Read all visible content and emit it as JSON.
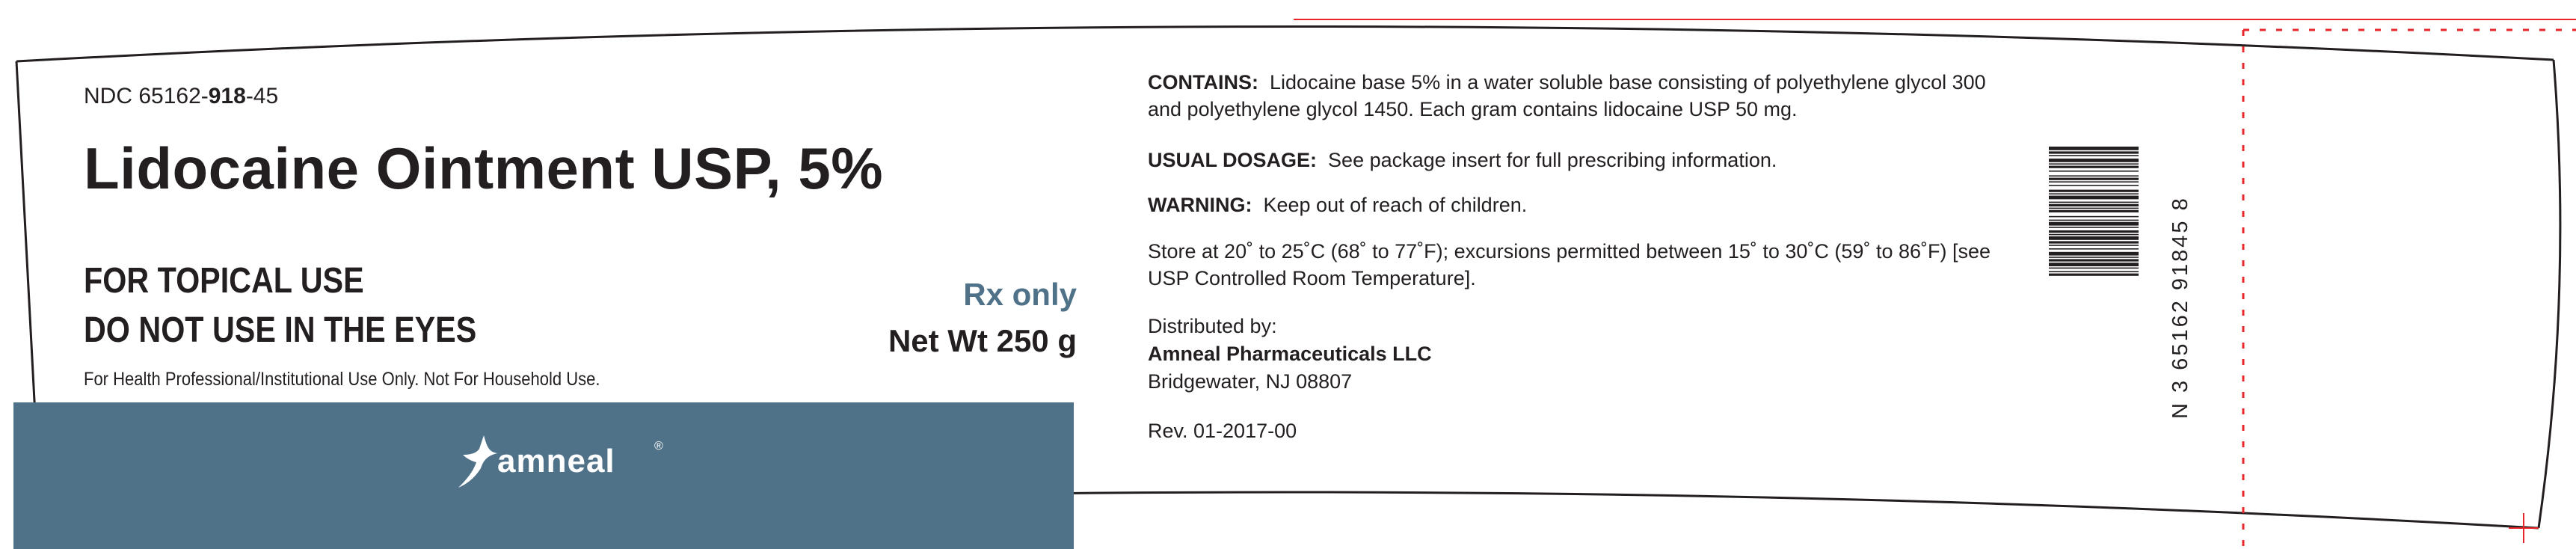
{
  "label": {
    "ndc_prefix": "NDC 65162-",
    "ndc_bold": "918",
    "ndc_suffix": "-45",
    "product_title": "Lidocaine Ointment USP, 5%",
    "topical_use": "FOR TOPICAL USE",
    "eyes_warning": "DO NOT USE IN THE EYES",
    "professional_note": "For Health Professional/Institutional Use Only. Not For Household Use.",
    "rx_only": "Rx only",
    "net_weight": "Net Wt 250 g",
    "brand_name": "amneal",
    "brand_registered": "®"
  },
  "info": {
    "contains_heading": "CONTAINS:",
    "contains_text": "Lidocaine base 5% in a water soluble base consisting of polyethylene glycol 300 and polyethylene glycol 1450. Each gram contains lidocaine USP 50 mg.",
    "dosage_heading": "USUAL DOSAGE:",
    "dosage_text": "See package insert for full prescribing information.",
    "warning_heading": "WARNING:",
    "warning_text": "Keep out of reach of children.",
    "storage_text": "Store at 20˚ to 25˚C (68˚ to 77˚F); excursions permitted between 15˚ to 30˚C (59˚ to 86˚F) [see USP Controlled Room Temperature].",
    "distributed_by": "Distributed by:",
    "distributor_name": "Amneal Pharmaceuticals LLC",
    "distributor_city": "Bridgewater, NJ 08807",
    "revision": "Rev. 01-2017-00"
  },
  "barcode": {
    "human_readable": "N 3 65162 91845 8"
  },
  "colors": {
    "brand_band": "#4f7289",
    "text": "#231f20",
    "dieline": "#e8262b"
  }
}
